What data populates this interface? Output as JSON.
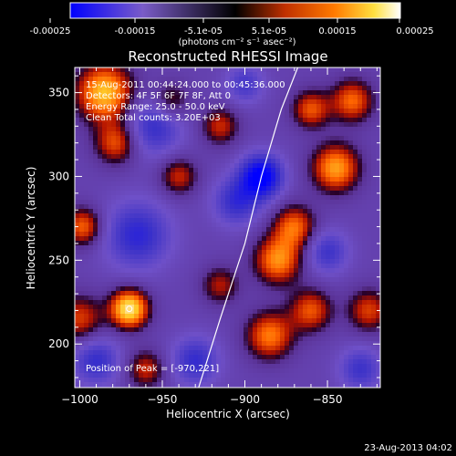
{
  "colorbar": {
    "ticks": [
      "-0.00025",
      "-0.00015",
      "-5.1e-05",
      "5.1e-05",
      "0.00015",
      "0.00025"
    ],
    "units_label": "(photons cm⁻² s⁻¹ asec⁻²)",
    "colors": [
      "#0000ff",
      "#7a5cc8",
      "#000000",
      "#c03000",
      "#ff7a00",
      "#ffe040",
      "#ffffff"
    ]
  },
  "chart_data": {
    "type": "heatmap",
    "title": "Reconstructed RHESSI Image",
    "xlabel": "Heliocentric X (arcsec)",
    "ylabel": "Heliocentric Y (arcsec)",
    "xlim": [
      -1003,
      -818
    ],
    "ylim": [
      174,
      365
    ],
    "xticks": [
      -1000,
      -950,
      -900,
      -850
    ],
    "yticks": [
      200,
      250,
      300,
      350
    ],
    "xtick_labels": [
      "−1000",
      "−950",
      "−900",
      "−850"
    ],
    "ytick_labels": [
      "200",
      "250",
      "300",
      "350"
    ],
    "peak": {
      "x": -970,
      "y": 221,
      "label": "Position of Peak = [-970,221]"
    },
    "info_lines": [
      "15-Aug-2011 00:44:24.000 to 00:45:36.000",
      "Detectors: 4F 5F 6F 7F 8F, Att 0",
      "Energy Range: 25.0 - 50.0 keV",
      "Clean     Total counts: 3.20E+03"
    ],
    "limb_points": [
      [
        -928,
        174
      ],
      [
        -915,
        215
      ],
      [
        -900,
        260
      ],
      [
        -890,
        300
      ],
      [
        -878,
        340
      ],
      [
        -868,
        365
      ]
    ],
    "blobs": [
      {
        "x": -970,
        "y": 221,
        "v": 1.0,
        "s": 8
      },
      {
        "x": -985,
        "y": 350,
        "v": 0.85,
        "s": 12
      },
      {
        "x": -978,
        "y": 320,
        "v": 0.55,
        "s": 9
      },
      {
        "x": -998,
        "y": 270,
        "v": 0.6,
        "s": 8
      },
      {
        "x": -1000,
        "y": 215,
        "v": 0.5,
        "s": 10
      },
      {
        "x": -940,
        "y": 300,
        "v": 0.45,
        "s": 8
      },
      {
        "x": -945,
        "y": 345,
        "v": 0.4,
        "s": 8
      },
      {
        "x": -915,
        "y": 330,
        "v": 0.45,
        "s": 8
      },
      {
        "x": -880,
        "y": 250,
        "v": 0.7,
        "s": 10
      },
      {
        "x": -870,
        "y": 270,
        "v": 0.6,
        "s": 9
      },
      {
        "x": -885,
        "y": 205,
        "v": 0.65,
        "s": 10
      },
      {
        "x": -860,
        "y": 220,
        "v": 0.55,
        "s": 9
      },
      {
        "x": -845,
        "y": 305,
        "v": 0.75,
        "s": 10
      },
      {
        "x": -835,
        "y": 345,
        "v": 0.6,
        "s": 9
      },
      {
        "x": -860,
        "y": 340,
        "v": 0.55,
        "s": 8
      },
      {
        "x": -825,
        "y": 220,
        "v": 0.5,
        "s": 9
      },
      {
        "x": -915,
        "y": 235,
        "v": 0.4,
        "s": 8
      },
      {
        "x": -960,
        "y": 185,
        "v": 0.45,
        "s": 8
      },
      {
        "x": -965,
        "y": 265,
        "v": -0.55,
        "s": 14
      },
      {
        "x": -955,
        "y": 330,
        "v": -0.5,
        "s": 12
      },
      {
        "x": -890,
        "y": 300,
        "v": -0.9,
        "s": 9
      },
      {
        "x": -905,
        "y": 285,
        "v": -0.5,
        "s": 10
      },
      {
        "x": -990,
        "y": 190,
        "v": -0.5,
        "s": 10
      },
      {
        "x": -930,
        "y": 190,
        "v": -0.5,
        "s": 10
      },
      {
        "x": -900,
        "y": 355,
        "v": -0.4,
        "s": 8
      },
      {
        "x": -850,
        "y": 255,
        "v": -0.45,
        "s": 9
      },
      {
        "x": -830,
        "y": 185,
        "v": -0.45,
        "s": 9
      }
    ]
  },
  "footer": {
    "timestamp": "23-Aug-2013 04:02"
  }
}
